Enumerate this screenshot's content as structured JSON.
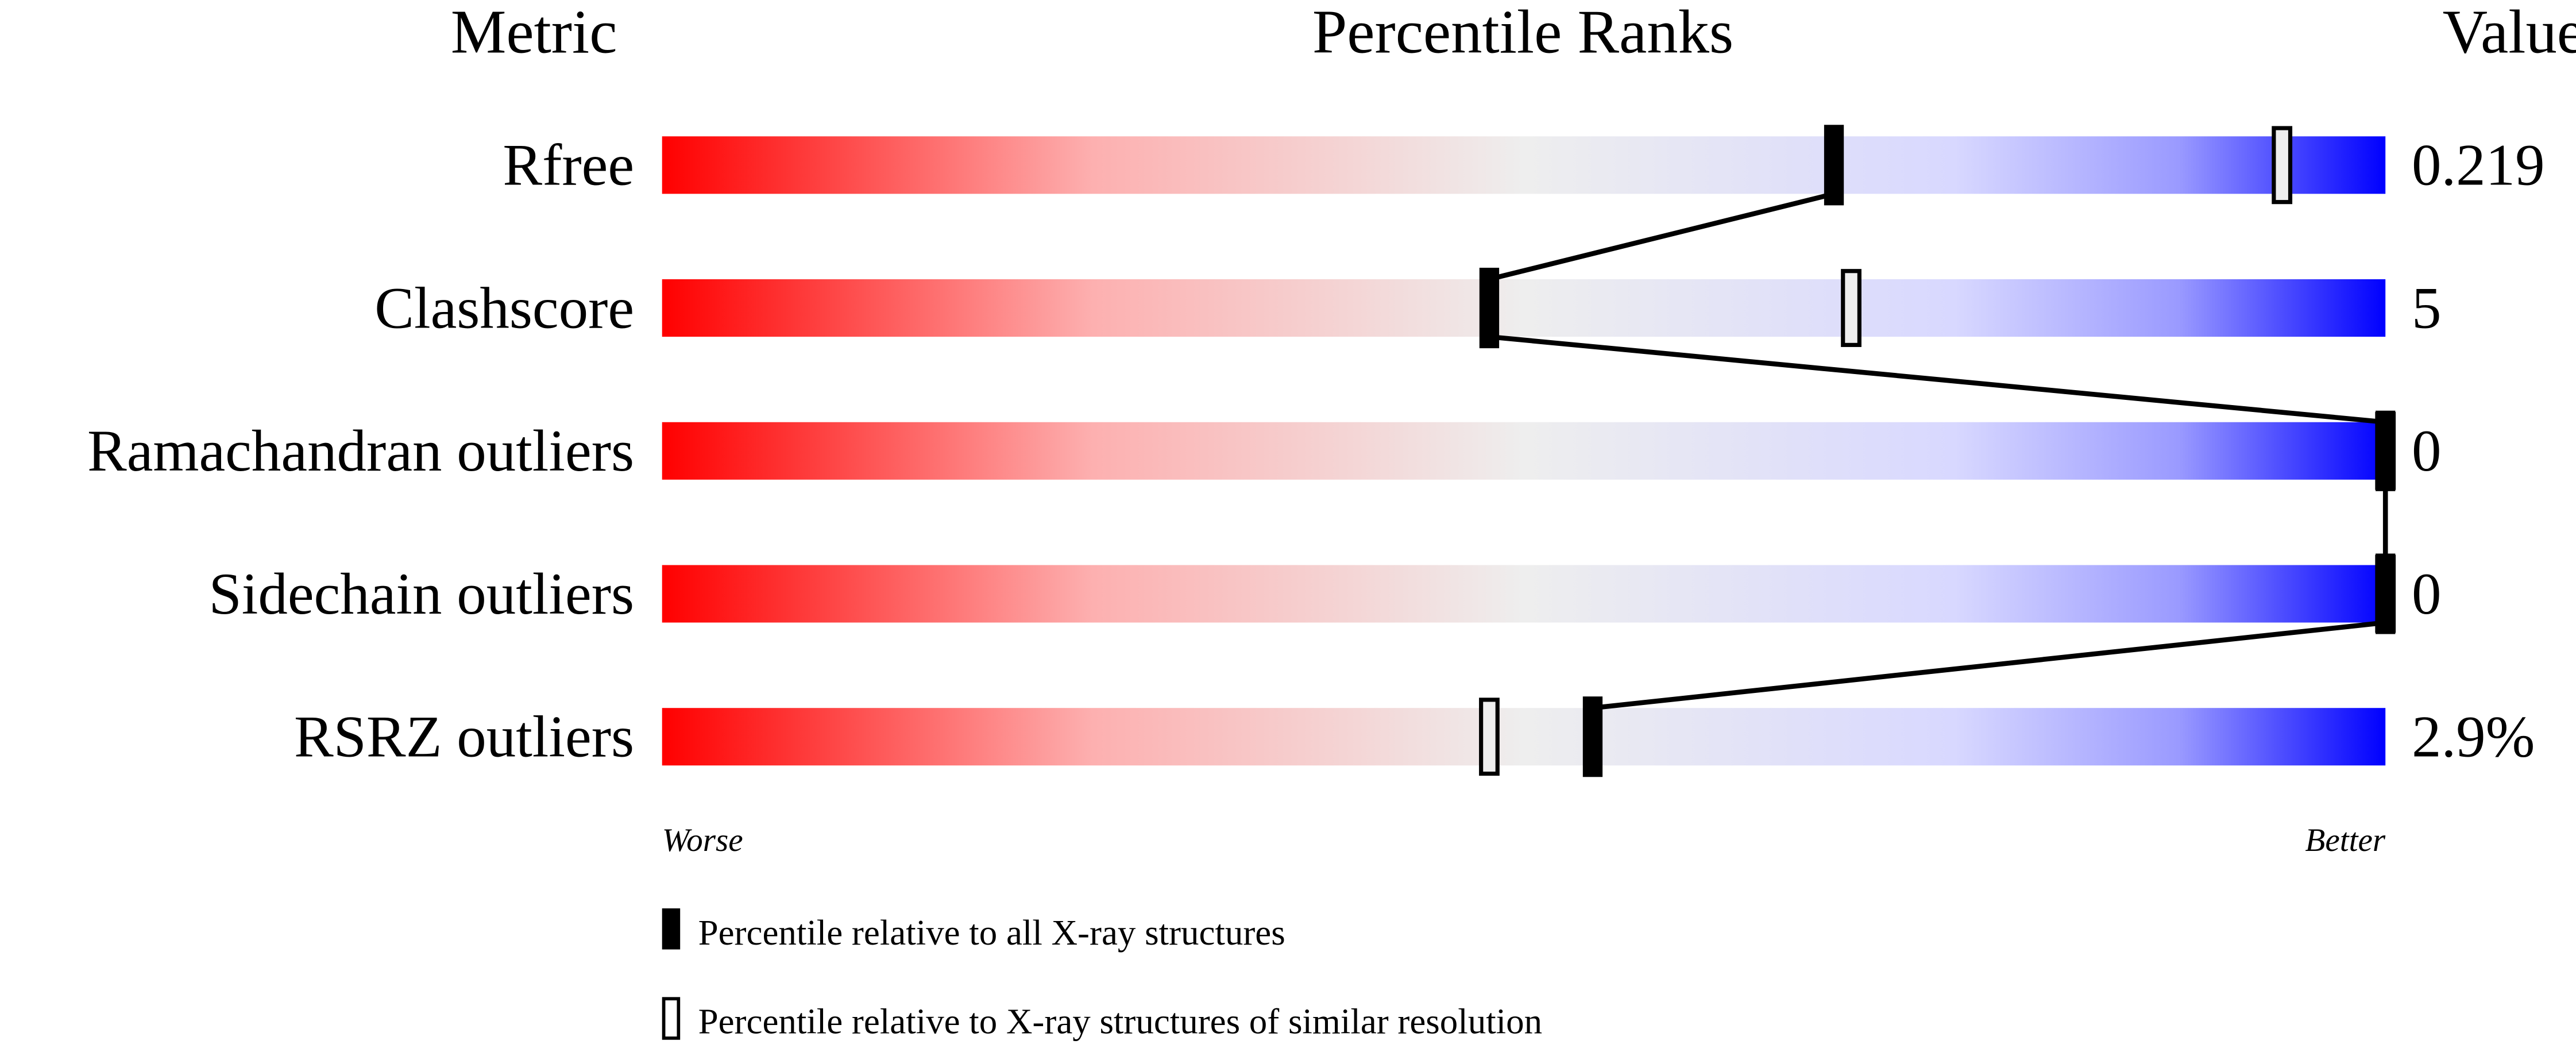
{
  "headers": {
    "metric": "Metric",
    "percentile": "Percentile Ranks",
    "value": "Value"
  },
  "axis": {
    "worse": "Worse",
    "better": "Better"
  },
  "legend": {
    "all": "Percentile relative to all X-ray structures",
    "similar": "Percentile relative to X-ray structures of similar resolution"
  },
  "colors": {
    "worse": "#ff0000",
    "middle": "#eeeeee",
    "pale_blue": "#d8d8ff",
    "better": "#0000ff",
    "marker": "#000000"
  },
  "chart_data": {
    "type": "percentile-slider",
    "xlim": [
      0,
      100
    ],
    "metrics": [
      {
        "name": "Rfree",
        "value": "0.219",
        "percentile_all": 68,
        "percentile_similar": 94
      },
      {
        "name": "Clashscore",
        "value": "5",
        "percentile_all": 48,
        "percentile_similar": 69
      },
      {
        "name": "Ramachandran outliers",
        "value": "0",
        "percentile_all": 100,
        "percentile_similar": 100
      },
      {
        "name": "Sidechain outliers",
        "value": "0",
        "percentile_all": 100,
        "percentile_similar": 100
      },
      {
        "name": "RSRZ outliers",
        "value": "2.9%",
        "percentile_all": 54,
        "percentile_similar": 48
      }
    ]
  }
}
